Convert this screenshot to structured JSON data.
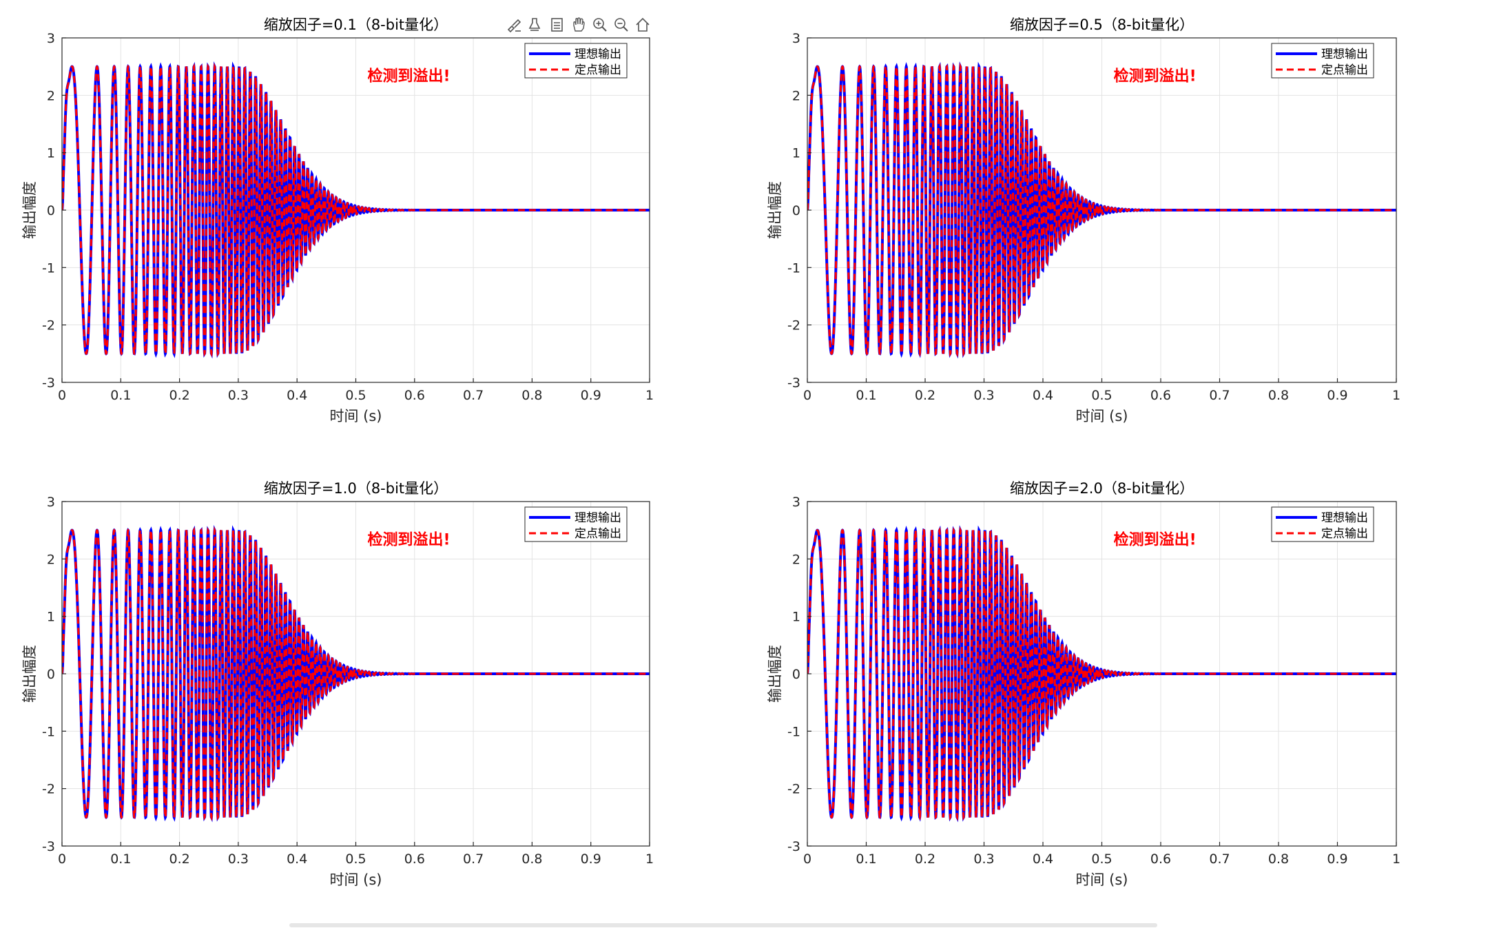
{
  "toolbar": {
    "buttons": [
      {
        "name": "brush-data-icon",
        "tooltip": ""
      },
      {
        "name": "data-tips-icon",
        "tooltip": ""
      },
      {
        "name": "restore-view-list-icon",
        "tooltip": ""
      },
      {
        "name": "pan-hand-icon",
        "tooltip": ""
      },
      {
        "name": "zoom-in-icon",
        "tooltip": ""
      },
      {
        "name": "zoom-out-icon",
        "tooltip": ""
      },
      {
        "name": "home-icon",
        "tooltip": ""
      }
    ]
  },
  "colors": {
    "ideal": "#0000ff",
    "fixed": "#ff0000",
    "annotation": "#ff0000",
    "grid": "#e3e3e3",
    "axis": "#262626"
  },
  "chart_data": [
    {
      "type": "line",
      "title": "缩放因子=0.1（8-bit量化）",
      "xlabel": "时间 (s)",
      "ylabel": "输出幅度",
      "xlim": [
        0,
        1
      ],
      "ylim": [
        -3,
        3
      ],
      "xticks": [
        "0",
        "0.1",
        "0.2",
        "0.3",
        "0.4",
        "0.5",
        "0.6",
        "0.7",
        "0.8",
        "0.9",
        "1"
      ],
      "yticks": [
        "-3",
        "-2",
        "-1",
        "0",
        "1",
        "2",
        "3"
      ],
      "grid": true,
      "legend_position": "top-right",
      "annotation": "检测到溢出!",
      "series": [
        {
          "name": "理想输出",
          "style": "solid",
          "color": "#0000ff"
        },
        {
          "name": "定点输出",
          "style": "dashed",
          "color": "#ff0000"
        }
      ],
      "signal": {
        "description_free": true,
        "peak_value": 2.95,
        "sustained_amplitude": 2.5,
        "t_peak": 0.007,
        "decay_start": 0.3,
        "decay_end": 0.55,
        "settled_value": 0
      }
    },
    {
      "type": "line",
      "title": "缩放因子=0.5（8-bit量化）",
      "xlabel": "时间 (s)",
      "ylabel": "输出幅度",
      "xlim": [
        0,
        1
      ],
      "ylim": [
        -3,
        3
      ],
      "xticks": [
        "0",
        "0.1",
        "0.2",
        "0.3",
        "0.4",
        "0.5",
        "0.6",
        "0.7",
        "0.8",
        "0.9",
        "1"
      ],
      "yticks": [
        "-3",
        "-2",
        "-1",
        "0",
        "1",
        "2",
        "3"
      ],
      "grid": true,
      "legend_position": "top-right",
      "annotation": "检测到溢出!",
      "series": [
        {
          "name": "理想输出",
          "style": "solid",
          "color": "#0000ff"
        },
        {
          "name": "定点输出",
          "style": "dashed",
          "color": "#ff0000"
        }
      ],
      "signal": {
        "description_free": true,
        "peak_value": 2.95,
        "sustained_amplitude": 2.5,
        "t_peak": 0.007,
        "decay_start": 0.3,
        "decay_end": 0.55,
        "settled_value": 0
      }
    },
    {
      "type": "line",
      "title": "缩放因子=1.0（8-bit量化）",
      "xlabel": "时间 (s)",
      "ylabel": "输出幅度",
      "xlim": [
        0,
        1
      ],
      "ylim": [
        -3,
        3
      ],
      "xticks": [
        "0",
        "0.1",
        "0.2",
        "0.3",
        "0.4",
        "0.5",
        "0.6",
        "0.7",
        "0.8",
        "0.9",
        "1"
      ],
      "yticks": [
        "-3",
        "-2",
        "-1",
        "0",
        "1",
        "2",
        "3"
      ],
      "grid": true,
      "legend_position": "top-right",
      "annotation": "检测到溢出!",
      "series": [
        {
          "name": "理想输出",
          "style": "solid",
          "color": "#0000ff"
        },
        {
          "name": "定点输出",
          "style": "dashed",
          "color": "#ff0000"
        }
      ],
      "signal": {
        "description_free": true,
        "peak_value": 2.95,
        "sustained_amplitude": 2.5,
        "t_peak": 0.007,
        "decay_start": 0.3,
        "decay_end": 0.55,
        "settled_value": 0
      }
    },
    {
      "type": "line",
      "title": "缩放因子=2.0（8-bit量化）",
      "xlabel": "时间 (s)",
      "ylabel": "输出幅度",
      "xlim": [
        0,
        1
      ],
      "ylim": [
        -3,
        3
      ],
      "xticks": [
        "0",
        "0.1",
        "0.2",
        "0.3",
        "0.4",
        "0.5",
        "0.6",
        "0.7",
        "0.8",
        "0.9",
        "1"
      ],
      "yticks": [
        "-3",
        "-2",
        "-1",
        "0",
        "1",
        "2",
        "3"
      ],
      "grid": true,
      "legend_position": "top-right",
      "annotation": "检测到溢出!",
      "series": [
        {
          "name": "理想输出",
          "style": "solid",
          "color": "#0000ff"
        },
        {
          "name": "定点输出",
          "style": "dashed",
          "color": "#ff0000"
        }
      ],
      "signal": {
        "description_free": true,
        "peak_value": 2.95,
        "sustained_amplitude": 2.5,
        "t_peak": 0.007,
        "decay_start": 0.3,
        "decay_end": 0.55,
        "settled_value": 0
      }
    }
  ]
}
